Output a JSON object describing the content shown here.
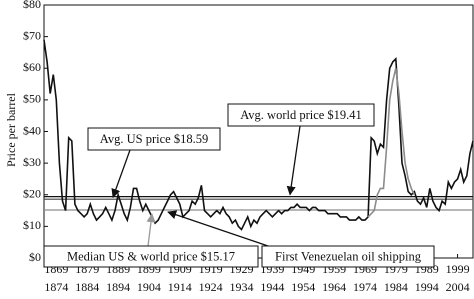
{
  "chart_data": {
    "type": "line",
    "y_label": "Price per barrel",
    "xlim": [
      1865,
      2004
    ],
    "ylim": [
      0,
      80
    ],
    "yticks": [
      {
        "value": 0,
        "label": "$0"
      },
      {
        "value": 10,
        "label": "$10"
      },
      {
        "value": 20,
        "label": "$20"
      },
      {
        "value": 30,
        "label": "$30"
      },
      {
        "value": 40,
        "label": "$40"
      },
      {
        "value": 50,
        "label": "$50"
      },
      {
        "value": 60,
        "label": "$60"
      },
      {
        "value": 70,
        "label": "$70"
      },
      {
        "value": 80,
        "label": "$80"
      }
    ],
    "xticks": [
      1869,
      1879,
      1889,
      1899,
      1909,
      1919,
      1929,
      1939,
      1949,
      1959,
      1969,
      1979,
      1989,
      1999
    ],
    "xtick_labels_row2": [
      1874,
      1884,
      1894,
      1904,
      1914,
      1924,
      1934,
      1944,
      1954,
      1964,
      1974,
      1984,
      1994,
      2004
    ],
    "series": [
      {
        "color": "#111111",
        "x": [
          1865,
          1866,
          1867,
          1868,
          1869,
          1870,
          1871,
          1872,
          1873,
          1874,
          1875,
          1876,
          1877,
          1878,
          1879,
          1880,
          1881,
          1882,
          1883,
          1884,
          1885,
          1886,
          1887,
          1888,
          1889,
          1890,
          1891,
          1892,
          1893,
          1894,
          1895,
          1896,
          1897,
          1898,
          1899,
          1900,
          1901,
          1902,
          1903,
          1904,
          1905,
          1906,
          1907,
          1908,
          1909,
          1910,
          1911,
          1912,
          1913,
          1914,
          1915,
          1916,
          1917,
          1918,
          1919,
          1920,
          1921,
          1922,
          1923,
          1924,
          1925,
          1926,
          1927,
          1928,
          1929,
          1930,
          1931,
          1932,
          1933,
          1934,
          1935,
          1936,
          1937,
          1938,
          1939,
          1940,
          1941,
          1942,
          1943,
          1944,
          1945,
          1946,
          1947,
          1948,
          1949,
          1950,
          1951,
          1952,
          1953,
          1954,
          1955,
          1956,
          1957,
          1958,
          1959,
          1960,
          1961,
          1962,
          1963,
          1964,
          1965,
          1966,
          1967,
          1968,
          1969,
          1970,
          1971,
          1972,
          1973,
          1974,
          1975,
          1976,
          1977,
          1978,
          1979,
          1980,
          1981,
          1982,
          1983,
          1984,
          1985,
          1986,
          1987,
          1988,
          1989,
          1990,
          1991,
          1992,
          1993,
          1994,
          1995,
          1996,
          1997,
          1998,
          1999,
          2000,
          2001,
          2002,
          2003,
          2004
        ],
        "values": [
          69,
          62,
          52,
          58,
          50,
          30,
          18,
          15,
          38,
          37,
          17,
          15,
          14,
          13,
          14,
          17,
          14,
          12,
          13,
          14,
          16,
          14,
          12,
          15,
          20,
          17,
          14,
          12,
          16,
          22,
          22,
          18,
          15,
          17,
          15,
          13,
          11,
          12,
          14,
          16,
          18,
          20,
          21,
          19,
          17,
          13,
          14,
          15,
          18,
          17,
          19,
          23,
          15,
          14,
          13,
          14,
          15,
          14,
          16,
          14,
          13,
          11,
          12,
          10,
          9,
          11,
          13,
          10,
          12,
          11,
          13,
          14,
          15,
          14,
          13,
          14,
          15,
          14,
          15,
          15,
          16,
          16,
          17,
          16,
          16,
          16,
          15,
          16,
          16,
          15,
          15,
          15,
          14,
          14,
          14,
          14,
          13,
          13,
          13,
          12,
          12,
          12,
          13,
          12,
          12,
          13,
          38,
          37,
          33,
          36,
          35,
          50,
          60,
          62,
          63,
          48,
          30,
          26,
          21,
          20,
          21,
          18,
          17,
          19,
          16,
          22,
          18,
          16,
          15,
          18,
          17,
          24,
          22,
          24,
          25,
          28,
          24,
          26,
          33,
          37
        ]
      },
      {
        "color": "#8c8c8c",
        "x": [
          1970,
          1971,
          1972,
          1973,
          1974,
          1975,
          1976,
          1977,
          1978,
          1979,
          1980,
          1981,
          1982,
          1983,
          1984,
          1985
        ],
        "values": [
          13,
          14,
          15,
          20,
          22,
          22,
          35,
          50,
          56,
          60,
          52,
          40,
          30,
          25,
          22,
          20
        ]
      }
    ],
    "reference_lines": [
      {
        "value": 19.41,
        "label": "Avg. world price $19.41",
        "color": "#111111"
      },
      {
        "value": 18.59,
        "label": "Avg. US price $18.59",
        "color": "#444444"
      },
      {
        "value": 15.17,
        "label": "Median US & world price $15.17",
        "color": "#8c8c8c"
      }
    ],
    "annotation": "First Venezuelan oil shipping"
  }
}
